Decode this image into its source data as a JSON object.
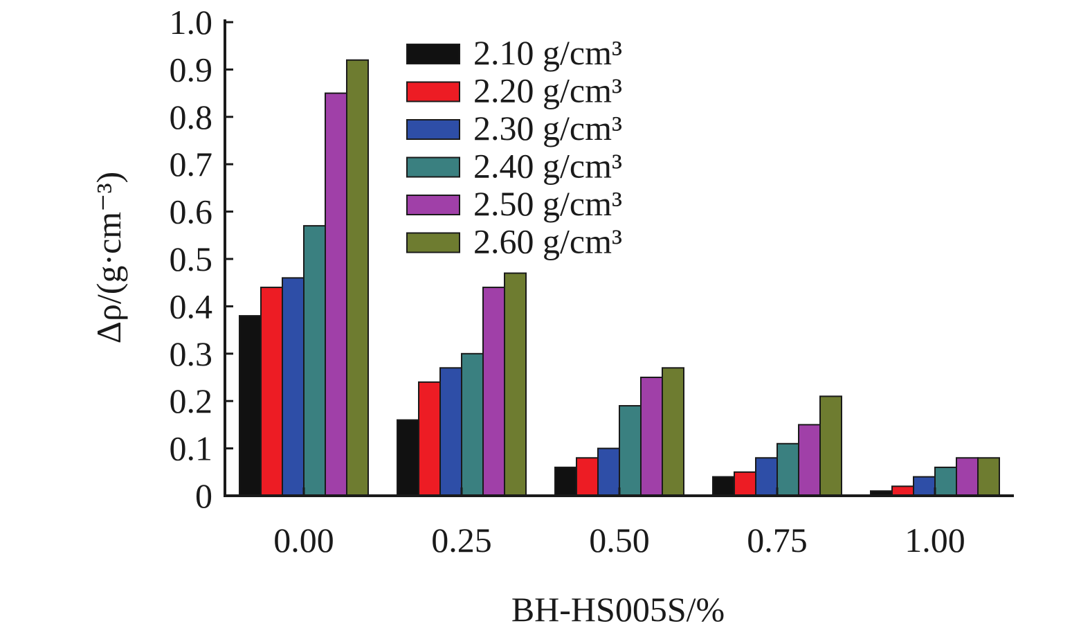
{
  "chart_data": {
    "type": "bar",
    "xlabel": "BH-HS005S/%",
    "ylabel": "Δρ/(g·cm⁻³)",
    "categories": [
      "0.00",
      "0.25",
      "0.50",
      "0.75",
      "1.00"
    ],
    "ylim": [
      0,
      1.0
    ],
    "yticks": [
      "0",
      "0.1",
      "0.2",
      "0.3",
      "0.4",
      "0.5",
      "0.6",
      "0.7",
      "0.8",
      "0.9",
      "1.0"
    ],
    "grid": false,
    "legend_position": "top-center",
    "series": [
      {
        "name": "2.10 g/cm³",
        "color": "#111111",
        "values": [
          0.38,
          0.16,
          0.06,
          0.04,
          0.01
        ]
      },
      {
        "name": "2.20 g/cm³",
        "color": "#ed1c24",
        "values": [
          0.44,
          0.24,
          0.08,
          0.05,
          0.02
        ]
      },
      {
        "name": "2.30 g/cm³",
        "color": "#2e4ea7",
        "values": [
          0.46,
          0.27,
          0.1,
          0.08,
          0.04
        ]
      },
      {
        "name": "2.40 g/cm³",
        "color": "#3a8080",
        "values": [
          0.57,
          0.3,
          0.19,
          0.11,
          0.06
        ]
      },
      {
        "name": "2.50 g/cm³",
        "color": "#a040a8",
        "values": [
          0.85,
          0.44,
          0.25,
          0.15,
          0.08
        ]
      },
      {
        "name": "2.60 g/cm³",
        "color": "#6e7c30",
        "values": [
          0.92,
          0.47,
          0.27,
          0.21,
          0.08
        ]
      }
    ]
  }
}
